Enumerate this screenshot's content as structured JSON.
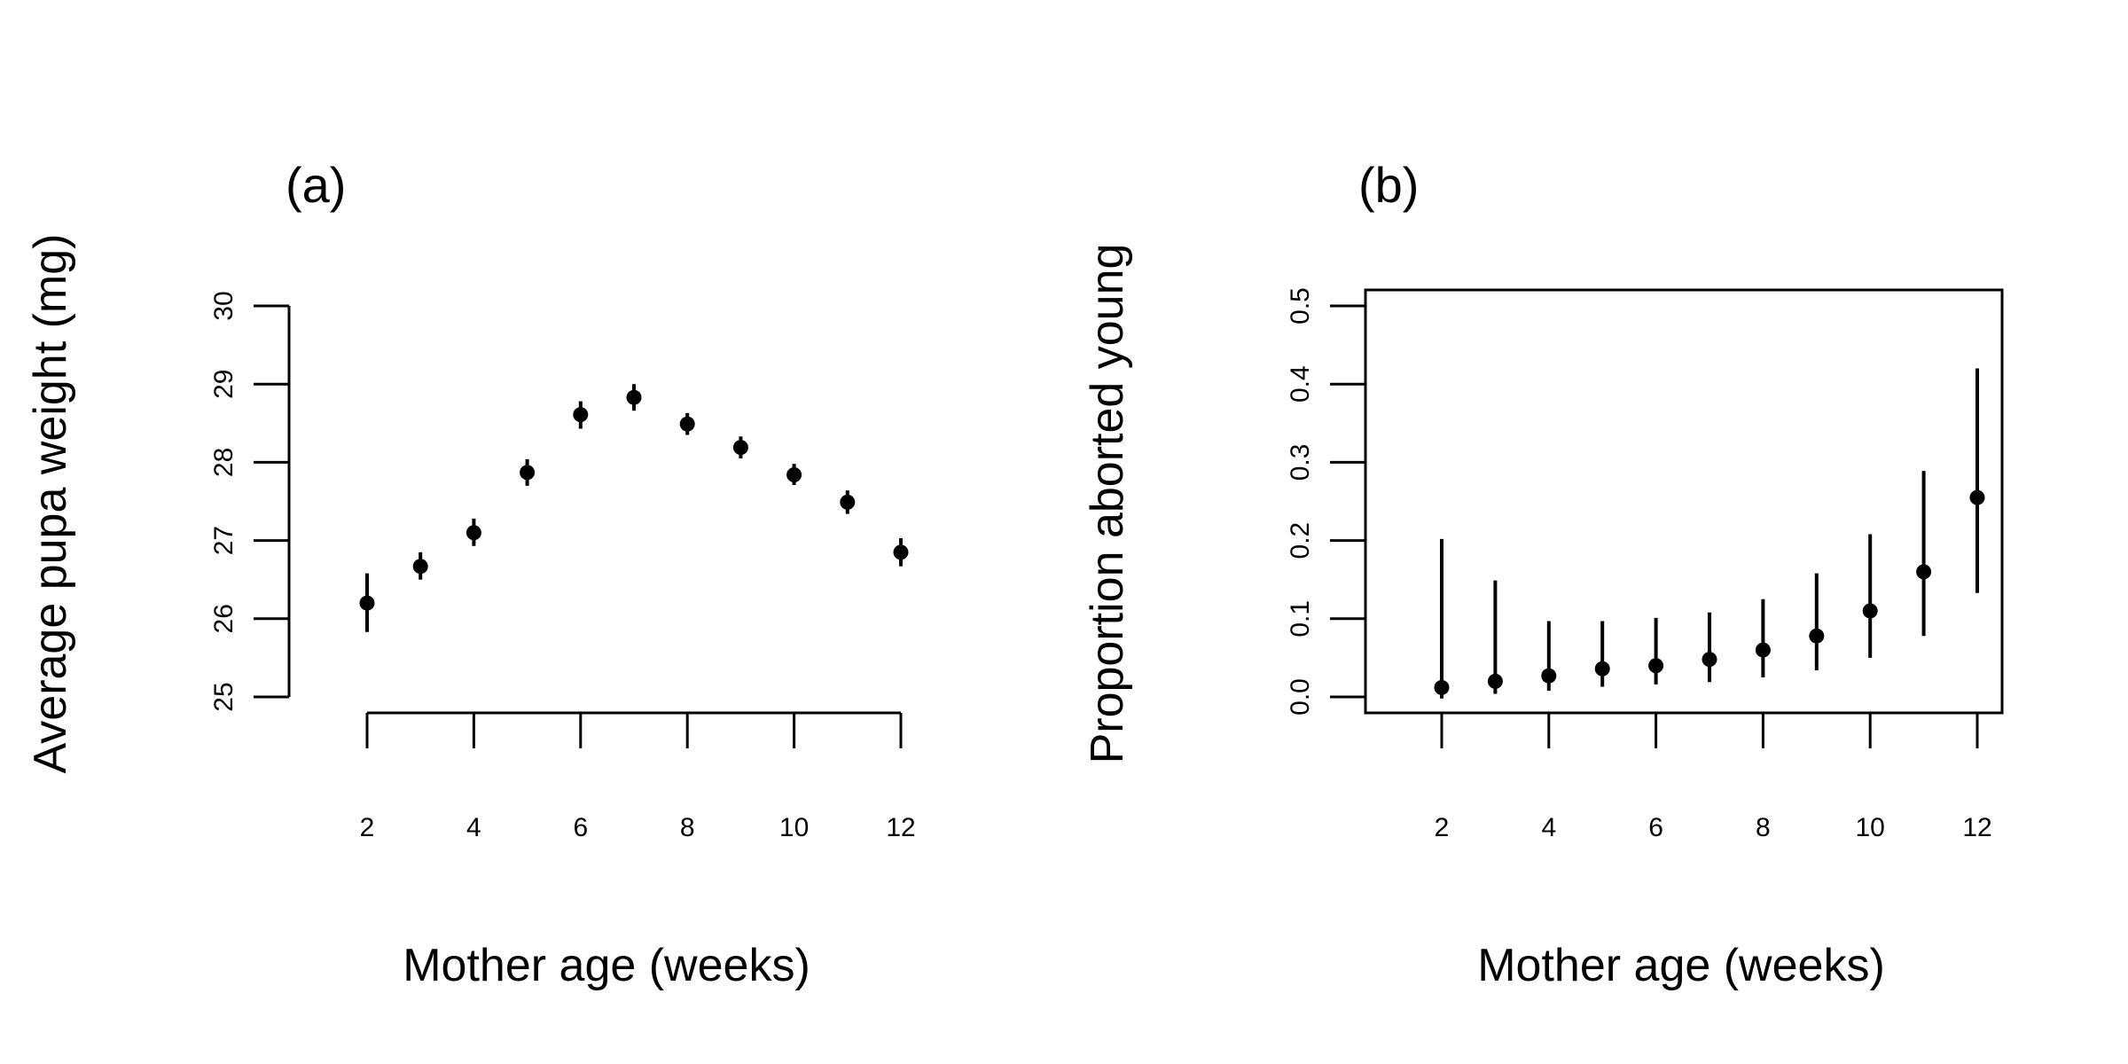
{
  "chart_data": [
    {
      "type": "scatter",
      "panel_label": "(a)",
      "xlabel": "Mother age (weeks)",
      "ylabel": "Average pupa weight (mg)",
      "xticks": [
        2,
        4,
        6,
        8,
        10,
        12
      ],
      "yticks": [
        25,
        26,
        27,
        28,
        29,
        30
      ],
      "xlim": [
        2,
        12
      ],
      "ylim": [
        25,
        30
      ],
      "boxed": false,
      "grid": false,
      "x": [
        2,
        3,
        4,
        5,
        6,
        7,
        8,
        9,
        10,
        11,
        12
      ],
      "y": [
        26.2,
        26.67,
        27.1,
        27.87,
        28.61,
        28.83,
        28.49,
        28.19,
        27.84,
        27.49,
        26.85
      ],
      "lower": [
        25.83,
        26.5,
        26.93,
        27.7,
        28.43,
        28.66,
        28.35,
        28.05,
        27.71,
        27.34,
        26.67
      ],
      "upper": [
        26.58,
        26.85,
        27.28,
        28.04,
        28.78,
        29.0,
        28.63,
        28.33,
        27.98,
        27.64,
        27.03
      ],
      "series": [
        {
          "marker": "filled-circle",
          "error_bars": "vertical"
        }
      ]
    },
    {
      "type": "scatter",
      "panel_label": "(b)",
      "xlabel": "Mother age (weeks)",
      "ylabel": "Proportion aborted young",
      "xticks": [
        2,
        4,
        6,
        8,
        10,
        12
      ],
      "yticks": [
        "0.0",
        "0.1",
        "0.2",
        "0.3",
        "0.4",
        "0.5"
      ],
      "xlim": [
        2,
        12
      ],
      "ylim": [
        0.0,
        0.5
      ],
      "boxed": true,
      "grid": false,
      "x": [
        2,
        3,
        4,
        5,
        6,
        7,
        8,
        9,
        10,
        11,
        12
      ],
      "y": [
        0.012,
        0.02,
        0.027,
        0.036,
        0.04,
        0.048,
        0.06,
        0.078,
        0.11,
        0.16,
        0.255
      ],
      "lower": [
        -0.002,
        0.004,
        0.008,
        0.013,
        0.016,
        0.019,
        0.025,
        0.034,
        0.05,
        0.078,
        0.133
      ],
      "upper": [
        0.202,
        0.149,
        0.097,
        0.097,
        0.101,
        0.108,
        0.125,
        0.158,
        0.208,
        0.289,
        0.42
      ],
      "series": [
        {
          "marker": "filled-circle",
          "error_bars": "vertical"
        }
      ]
    }
  ]
}
